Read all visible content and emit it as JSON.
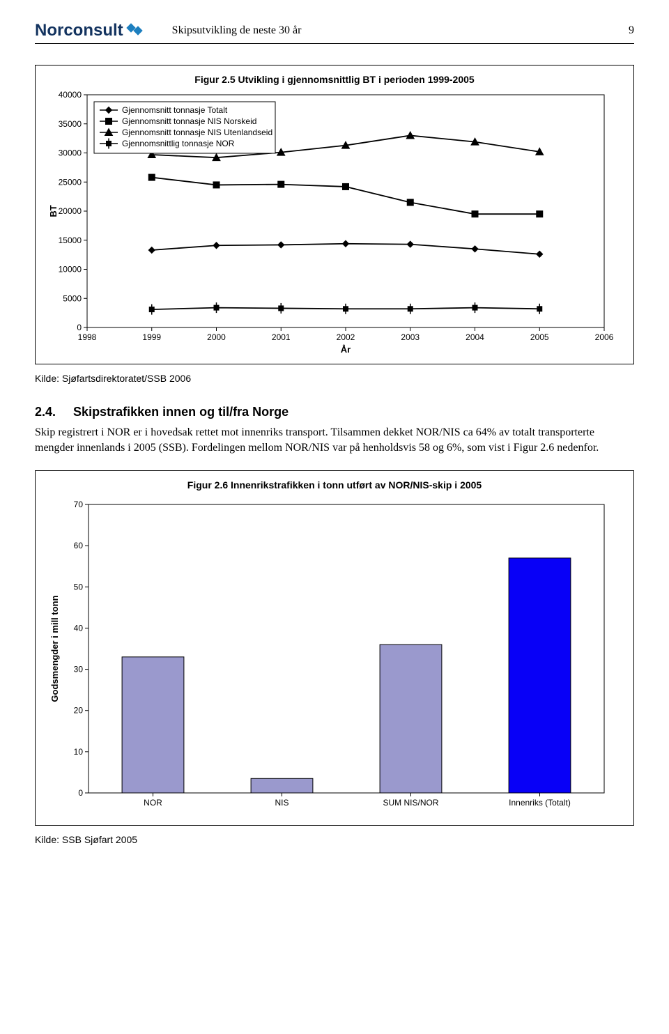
{
  "header": {
    "logo_text": "Norconsult",
    "title": "Skipsutvikling de neste 30 år",
    "page_number": "9"
  },
  "figure_2_5": {
    "title": "Figur 2.5  Utvikling i gjennomsnittlig BT i perioden 1999-2005",
    "type": "line",
    "background_color": "#ffffff",
    "grid_color": "#000000",
    "x_label": "År",
    "y_label": "BT",
    "x_ticks": [
      1998,
      1999,
      2000,
      2001,
      2002,
      2003,
      2004,
      2005,
      2006
    ],
    "y_ticks": [
      0,
      5000,
      10000,
      15000,
      20000,
      25000,
      30000,
      35000,
      40000
    ],
    "xlim": [
      1998,
      2006
    ],
    "ylim": [
      0,
      40000
    ],
    "legend": {
      "position": "upper-left-inside",
      "items": [
        {
          "label": "Gjennomsnitt tonnasje Totalt",
          "marker": "diamond",
          "color": "#000000"
        },
        {
          "label": "Gjennomsnitt tonnasje NIS Norskeid",
          "marker": "square",
          "color": "#000000"
        },
        {
          "label": "Gjennomsnitt tonnasje NIS Utenlandseid",
          "marker": "triangle",
          "color": "#000000"
        },
        {
          "label": "Gjennomsnittlig tonnasje NOR",
          "marker": "tick-square",
          "color": "#000000"
        }
      ]
    },
    "series": [
      {
        "name": "Totalt",
        "marker": "diamond",
        "color": "#000000",
        "x": [
          1999,
          2000,
          2001,
          2002,
          2003,
          2004,
          2005
        ],
        "y": [
          13300,
          14100,
          14200,
          14400,
          14300,
          13500,
          12600
        ]
      },
      {
        "name": "NIS Norskeid",
        "marker": "square",
        "color": "#000000",
        "x": [
          1999,
          2000,
          2001,
          2002,
          2003,
          2004,
          2005
        ],
        "y": [
          25800,
          24500,
          24600,
          24200,
          21500,
          19500,
          19500
        ]
      },
      {
        "name": "NIS Utenlandseid",
        "marker": "triangle",
        "color": "#000000",
        "x": [
          1999,
          2000,
          2001,
          2002,
          2003,
          2004,
          2005
        ],
        "y": [
          29700,
          29200,
          30100,
          31300,
          33000,
          31900,
          30200
        ]
      },
      {
        "name": "NOR",
        "marker": "tick-square",
        "color": "#000000",
        "x": [
          1999,
          2000,
          2001,
          2002,
          2003,
          2004,
          2005
        ],
        "y": [
          3100,
          3400,
          3300,
          3200,
          3200,
          3400,
          3200
        ]
      }
    ]
  },
  "source_1": "Kilde: Sjøfartsdirektoratet/SSB 2006",
  "section": {
    "number": "2.4.",
    "title": "Skipstrafikken innen og til/fra Norge"
  },
  "body_paragraph": "Skip registrert i NOR er i hovedsak rettet mot innenriks transport. Tilsammen dekket NOR/NIS ca 64% av totalt transporterte mengder innenlands i 2005 (SSB). Fordelingen mellom NOR/NIS var på henholdsvis 58 og 6%, som vist i Figur 2.6 nedenfor.",
  "figure_2_6": {
    "title": "Figur 2.6  Innenrikstrafikken i tonn utført av NOR/NIS-skip i 2005",
    "type": "bar",
    "background_color": "#ffffff",
    "y_label": "Godsmengder i mill tonn",
    "y_ticks": [
      0,
      10,
      20,
      30,
      40,
      50,
      60,
      70
    ],
    "ylim": [
      0,
      70
    ],
    "categories": [
      "NOR",
      "NIS",
      "SUM NIS/NOR",
      "Innenriks (Totalt)"
    ],
    "values": [
      33,
      3.5,
      36,
      57
    ],
    "bar_colors": [
      "#9a99cd",
      "#9a99cd",
      "#9a99cd",
      "#0800f7"
    ],
    "bar_border": "#000000",
    "bar_width_ratio": 0.48
  },
  "source_2": "Kilde: SSB Sjøfart 2005"
}
